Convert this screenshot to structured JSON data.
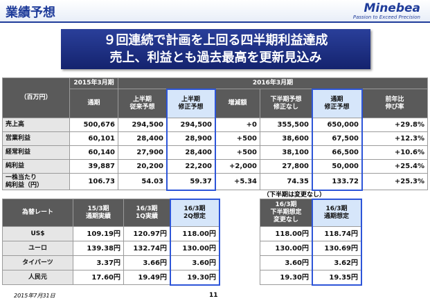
{
  "header": {
    "title": "業績予想",
    "logo": "Minebea",
    "tagline": "Passion to Exceed Precision"
  },
  "banner": [
    "９回連続で計画を上回る四半期利益達成",
    "売上、利益とも過去最高を更新見込み"
  ],
  "earnings": {
    "unit": "（百万円）",
    "period_headers": [
      "2015年3月期",
      "2016年3月期"
    ],
    "columns": [
      [
        "通期"
      ],
      [
        "上半期",
        "従来予想"
      ],
      [
        "上半期",
        "修正予想"
      ],
      [
        "増減額"
      ],
      [
        "下半期予想",
        "修正なし"
      ],
      [
        "通期",
        "修正予想"
      ],
      [
        "前年比",
        "伸び率"
      ]
    ],
    "rows": [
      {
        "label": [
          "売上高"
        ],
        "cells": [
          "500,676",
          "294,500",
          "294,500",
          "+0",
          "355,500",
          "650,000",
          "+29.8%"
        ]
      },
      {
        "label": [
          "営業利益"
        ],
        "cells": [
          "60,101",
          "28,400",
          "28,900",
          "+500",
          "38,600",
          "67,500",
          "+12.3%"
        ]
      },
      {
        "label": [
          "経常利益"
        ],
        "cells": [
          "60,140",
          "27,900",
          "28,400",
          "+500",
          "38,100",
          "66,500",
          "+10.6%"
        ]
      },
      {
        "label": [
          "純利益"
        ],
        "cells": [
          "39,887",
          "20,200",
          "22,200",
          "+2,000",
          "27,800",
          "50,000",
          "+25.4%"
        ]
      },
      {
        "label": [
          "一株当たり",
          "純利益（円）"
        ],
        "cells": [
          "106.73",
          "54.03",
          "59.37",
          "+5.34",
          "74.35",
          "133.72",
          "+25.3%"
        ]
      }
    ]
  },
  "note": "（下半期は変更なし）",
  "fx": {
    "header": "為替レート",
    "columns": [
      [
        "15/3期",
        "通期実績"
      ],
      [
        "16/3期",
        "1Q実績"
      ],
      [
        "16/3期",
        "2Q想定"
      ]
    ],
    "rows": [
      {
        "label": "US$",
        "cells": [
          "109.19円",
          "120.97円",
          "118.00円"
        ]
      },
      {
        "label": "ユーロ",
        "cells": [
          "139.38円",
          "132.74円",
          "130.00円"
        ]
      },
      {
        "label": "タイバーツ",
        "cells": [
          "3.37円",
          "3.66円",
          "3.60円"
        ]
      },
      {
        "label": "人民元",
        "cells": [
          "17.60円",
          "19.49円",
          "19.30円"
        ]
      }
    ]
  },
  "fx_outlook": {
    "columns": [
      [
        "16/3期",
        "下半期想定",
        "変更なし"
      ],
      [
        "16/3期",
        "通期想定"
      ]
    ],
    "rows": [
      [
        "118.00円",
        "118.74円"
      ],
      [
        "130.00円",
        "130.69円"
      ],
      [
        "3.60円",
        "3.62円"
      ],
      [
        "19.30円",
        "19.35円"
      ]
    ]
  },
  "footer": {
    "date": "2015年7月31日",
    "page": "11"
  }
}
